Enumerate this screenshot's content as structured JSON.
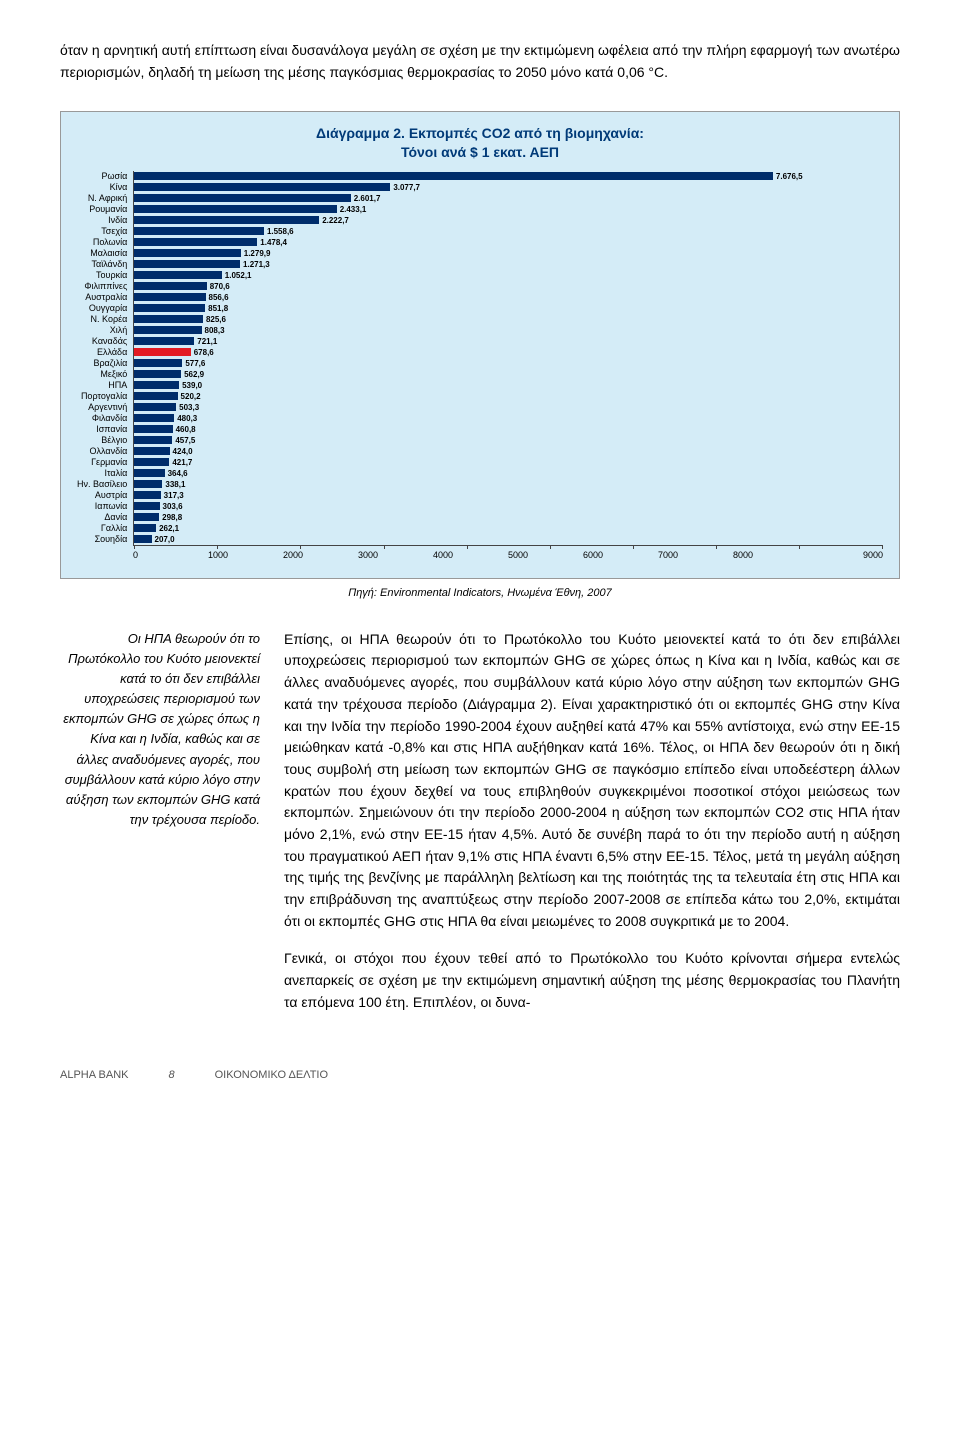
{
  "intro": "όταν η αρνητική αυτή επίπτωση είναι δυσανάλογα μεγάλη σε σχέση με την εκτιμώμενη ωφέλεια από την πλήρη εφαρμογή των ανωτέρω περιορισμών, δηλαδή τη μείωση της μέσης παγκόσμιας θερμοκρασίας το 2050 μόνο κατά 0,06 °C.",
  "chart": {
    "type": "bar",
    "title_line1": "Διάγραμμα 2. Εκπομπές CO2 από τη βιομηχανία:",
    "title_line2": "Τόνοι ανά $ 1 εκατ. ΑΕΠ",
    "background_color": "#d4ecf7",
    "bar_color": "#002d6b",
    "highlight_color": "#e31b23",
    "xmax": 9000,
    "xticks": [
      "0",
      "1000",
      "2000",
      "3000",
      "4000",
      "5000",
      "6000",
      "7000",
      "8000",
      "9000"
    ],
    "rows": [
      {
        "label": "Ρωσία",
        "value": 7676.5,
        "display": "7.676,5",
        "highlight": false
      },
      {
        "label": "Κίνα",
        "value": 3077.7,
        "display": "3.077,7",
        "highlight": false
      },
      {
        "label": "Ν. Αφρική",
        "value": 2601.7,
        "display": "2.601,7",
        "highlight": false
      },
      {
        "label": "Ρουμανία",
        "value": 2433.1,
        "display": "2.433,1",
        "highlight": false
      },
      {
        "label": "Ινδία",
        "value": 2222.7,
        "display": "2.222,7",
        "highlight": false
      },
      {
        "label": "Τσεχία",
        "value": 1558.6,
        "display": "1.558,6",
        "highlight": false
      },
      {
        "label": "Πολωνία",
        "value": 1478.4,
        "display": "1.478,4",
        "highlight": false
      },
      {
        "label": "Μαλαισία",
        "value": 1279.9,
        "display": "1.279,9",
        "highlight": false
      },
      {
        "label": "Ταϊλάνδη",
        "value": 1271.3,
        "display": "1.271,3",
        "highlight": false
      },
      {
        "label": "Τουρκία",
        "value": 1052.1,
        "display": "1.052,1",
        "highlight": false
      },
      {
        "label": "Φιλιππίνες",
        "value": 870.6,
        "display": "870,6",
        "highlight": false
      },
      {
        "label": "Αυστραλία",
        "value": 856.6,
        "display": "856,6",
        "highlight": false
      },
      {
        "label": "Ουγγαρία",
        "value": 851.8,
        "display": "851,8",
        "highlight": false
      },
      {
        "label": "Ν. Κορέα",
        "value": 825.6,
        "display": "825,6",
        "highlight": false
      },
      {
        "label": "Χιλή",
        "value": 808.3,
        "display": "808,3",
        "highlight": false
      },
      {
        "label": "Καναδάς",
        "value": 721.1,
        "display": "721,1",
        "highlight": false
      },
      {
        "label": "Ελλάδα",
        "value": 678.6,
        "display": "678,6",
        "highlight": true
      },
      {
        "label": "Βραζιλία",
        "value": 577.6,
        "display": "577,6",
        "highlight": false
      },
      {
        "label": "Μεξικό",
        "value": 562.9,
        "display": "562,9",
        "highlight": false
      },
      {
        "label": "ΗΠΑ",
        "value": 539.0,
        "display": "539,0",
        "highlight": false
      },
      {
        "label": "Πορτογαλία",
        "value": 520.2,
        "display": "520,2",
        "highlight": false
      },
      {
        "label": "Αργεντινή",
        "value": 503.3,
        "display": "503,3",
        "highlight": false
      },
      {
        "label": "Φιλανδία",
        "value": 480.3,
        "display": "480,3",
        "highlight": false
      },
      {
        "label": "Ισπανία",
        "value": 460.8,
        "display": "460,8",
        "highlight": false
      },
      {
        "label": "Βέλγιο",
        "value": 457.5,
        "display": "457,5",
        "highlight": false
      },
      {
        "label": "Ολλανδία",
        "value": 424.0,
        "display": "424,0",
        "highlight": false
      },
      {
        "label": "Γερμανία",
        "value": 421.7,
        "display": "421,7",
        "highlight": false
      },
      {
        "label": "Ιταλία",
        "value": 364.6,
        "display": "364,6",
        "highlight": false
      },
      {
        "label": "Ην. Βασίλειο",
        "value": 338.1,
        "display": "338,1",
        "highlight": false
      },
      {
        "label": "Αυστρία",
        "value": 317.3,
        "display": "317,3",
        "highlight": false
      },
      {
        "label": "Ιαπωνία",
        "value": 303.6,
        "display": "303,6",
        "highlight": false
      },
      {
        "label": "Δανία",
        "value": 298.8,
        "display": "298,8",
        "highlight": false
      },
      {
        "label": "Γαλλία",
        "value": 262.1,
        "display": "262,1",
        "highlight": false
      },
      {
        "label": "Σουηδία",
        "value": 207.0,
        "display": "207,0",
        "highlight": false
      }
    ],
    "source": "Πηγή: Environmental Indicators, Ηνωμένα Έθνη, 2007"
  },
  "sidebar": "Οι ΗΠΑ θεωρούν ότι το Πρωτόκολλο του Κυότο μειονεκτεί κατά το ότι δεν επιβάλλει υποχρεώσεις περιορισμού των εκπομπών GHG σε χώρες όπως η Κίνα και η Ινδία, καθώς και σε άλλες αναδυόμενες αγορές, που συμβάλλουν κατά κύριο λόγο στην αύξηση των εκπομπών GHG κατά την τρέχουσα περίοδο.",
  "body": {
    "p1": "Επίσης, οι ΗΠΑ θεωρούν ότι το Πρωτόκολλο του Κυότο μειονεκτεί κατά το ότι δεν επιβάλλει υποχρεώσεις περιορισμού των εκπομπών GHG σε χώρες όπως η Κίνα και η Ινδία, καθώς και σε άλλες αναδυόμενες αγορές, που συμβάλλουν κατά κύριο λόγο στην αύξηση των εκπομπών GHG κατά την τρέχουσα περίοδο (Διάγραμμα 2). Είναι χαρακτηριστικό ότι οι εκπομπές GHG στην Κίνα και την Ινδία την περίοδο 1990-2004 έχουν αυξηθεί κατά 47% και 55% αντίστοιχα, ενώ στην ΕΕ-15 μειώθηκαν κατά -0,8% και στις ΗΠΑ αυξήθηκαν κατά 16%. Τέλος, οι ΗΠΑ δεν θεωρούν ότι η δική τους συμβολή στη μείωση των εκπομπών GHG σε παγκόσμιο επίπεδο είναι υποδεέστερη άλλων κρατών που έχουν δεχθεί να τους επιβληθούν συγκεκριμένοι ποσοτικοί στόχοι μειώσεως των εκπομπών. Σημειώνουν ότι την περίοδο 2000-2004 η αύξηση των εκπομπών CO2 στις ΗΠΑ ήταν μόνο 2,1%, ενώ στην ΕΕ-15 ήταν 4,5%. Αυτό δε συνέβη παρά το ότι την περίοδο αυτή η αύξηση του πραγματικού ΑΕΠ ήταν 9,1% στις ΗΠΑ έναντι 6,5% στην ΕΕ-15. Τέλος, μετά τη μεγάλη αύξηση της τιμής της βενζίνης με παράλληλη βελτίωση και της ποιότητάς της τα τελευταία έτη στις ΗΠΑ και την επιβράδυνση της αναπτύξεως στην περίοδο 2007-2008 σε επίπεδα κάτω του 2,0%, εκτιμάται ότι οι εκπομπές GHG στις ΗΠΑ θα είναι μειωμένες το 2008 συγκριτικά με το 2004.",
    "p2": "Γενικά, οι στόχοι που έχουν τεθεί από το Πρωτόκολλο του Κυότο κρίνονται σήμερα εντελώς ανεπαρκείς σε σχέση με την εκτιμώμενη σημαντική αύξηση της μέσης θερμοκρασίας του Πλανήτη τα επόμενα 100 έτη. Επιπλέον, οι δυνα-"
  },
  "footer": {
    "left": "ALPHA BANK",
    "page": "8",
    "right": "ΟΙΚΟΝΟΜΙΚΟ ΔΕΛΤΙΟ"
  }
}
